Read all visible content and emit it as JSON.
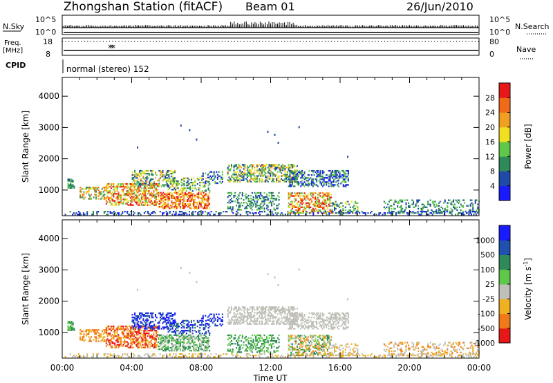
{
  "header": {
    "title": "Zhongshan Station (fitACF)",
    "beam": "Beam 01",
    "date": "26/Jun/2010"
  },
  "top_panels": {
    "nsky_label": "N.Sky",
    "nsky_ticks": [
      "10^5",
      "10^0"
    ],
    "nsearch_label": "N.Search",
    "nsearch_ticks": [
      "10^5",
      "10^0"
    ],
    "freq_label_1": "Freq.",
    "freq_label_2": "[MHz]",
    "freq_ticks": [
      "18",
      "8"
    ],
    "nave_label": "Nave",
    "nave_ticks": [
      "80",
      "0"
    ],
    "cpid_label": "CPID",
    "cpid_text": "normal (stereo) 152"
  },
  "chart_data": [
    {
      "type": "heatmap",
      "name": "power",
      "xlabel": "",
      "ylabel": "Slant Range [km]",
      "x_ticks": [
        "00:00",
        "04:00",
        "08:00",
        "12:00",
        "16:00",
        "20:00",
        "00:00"
      ],
      "y_ticks": [
        "1000",
        "2000",
        "3000",
        "4000"
      ],
      "xlim_hours": [
        0,
        24
      ],
      "ylim_km": [
        180,
        4600
      ],
      "colorbar": {
        "label": "Power [dB]",
        "ticks": [
          "4",
          "8",
          "12",
          "16",
          "20",
          "24",
          "28"
        ],
        "colors": [
          "#1a1aff",
          "#1f4aa8",
          "#2f8a5a",
          "#5fc84a",
          "#f0e020",
          "#f0a020",
          "#f06a18",
          "#e81818"
        ]
      }
    },
    {
      "type": "heatmap",
      "name": "velocity",
      "xlabel": "Time UT",
      "ylabel": "Slant Range [km]",
      "x_ticks": [
        "00:00",
        "04:00",
        "08:00",
        "12:00",
        "16:00",
        "20:00",
        "00:00"
      ],
      "y_ticks": [
        "1000",
        "2000",
        "3000",
        "4000"
      ],
      "xlim_hours": [
        0,
        24
      ],
      "ylim_km": [
        180,
        4600
      ],
      "colorbar": {
        "label": "Velocity [m s",
        "label_sup": "-1",
        "label_end": "]",
        "ticks": [
          "1000",
          "500",
          "100",
          "25",
          "-25",
          "-100",
          "-500",
          "-1000"
        ],
        "colors": [
          "#1a1aff",
          "#2050b0",
          "#2f8a5a",
          "#5fc84a",
          "#c0c0b8",
          "#f0b020",
          "#f07a18",
          "#e81818"
        ]
      }
    }
  ],
  "colors": {
    "background": "#ffffff",
    "axis": "#000000",
    "ground_scatter": "#b4b4a8"
  }
}
